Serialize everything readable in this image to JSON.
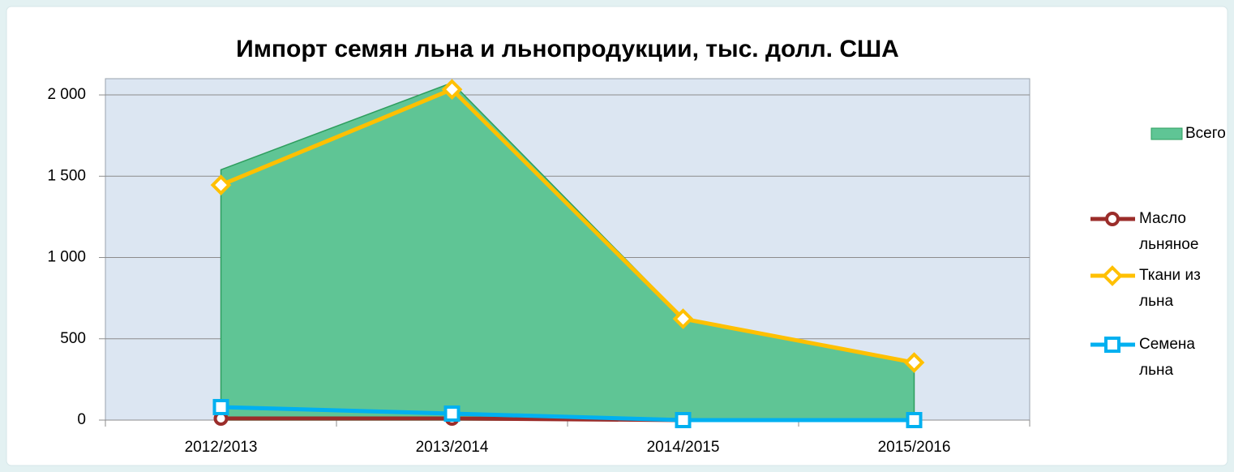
{
  "chart_data": {
    "type": "line",
    "title": "Импорт семян льна и льнопродукции, тыс. долл. США",
    "categories": [
      "2012/2013",
      "2013/2014",
      "2014/2015",
      "2015/2016"
    ],
    "series": [
      {
        "name": "Всего",
        "type": "area",
        "color": "#5fc595",
        "values": [
          1540,
          2075,
          630,
          355
        ]
      },
      {
        "name": "Масло льняное",
        "marker": "circle",
        "color": "#9b2d2a",
        "values": [
          10,
          10,
          0,
          0
        ]
      },
      {
        "name": "Ткани из льна",
        "marker": "diamond",
        "color": "#ffc000",
        "values": [
          1446,
          2034,
          623,
          354
        ]
      },
      {
        "name": "Семена льна",
        "marker": "square",
        "color": "#00b0f0",
        "values": [
          80,
          40,
          0,
          0
        ]
      }
    ],
    "ylim": [
      0,
      2100
    ],
    "yticks": [
      0,
      500,
      {
        "value": 1000,
        "label": "1 000"
      },
      {
        "value": 1500,
        "label": "1 500"
      },
      {
        "value": 2000,
        "label": "2 000"
      }
    ],
    "grid": true,
    "legend": "right"
  }
}
